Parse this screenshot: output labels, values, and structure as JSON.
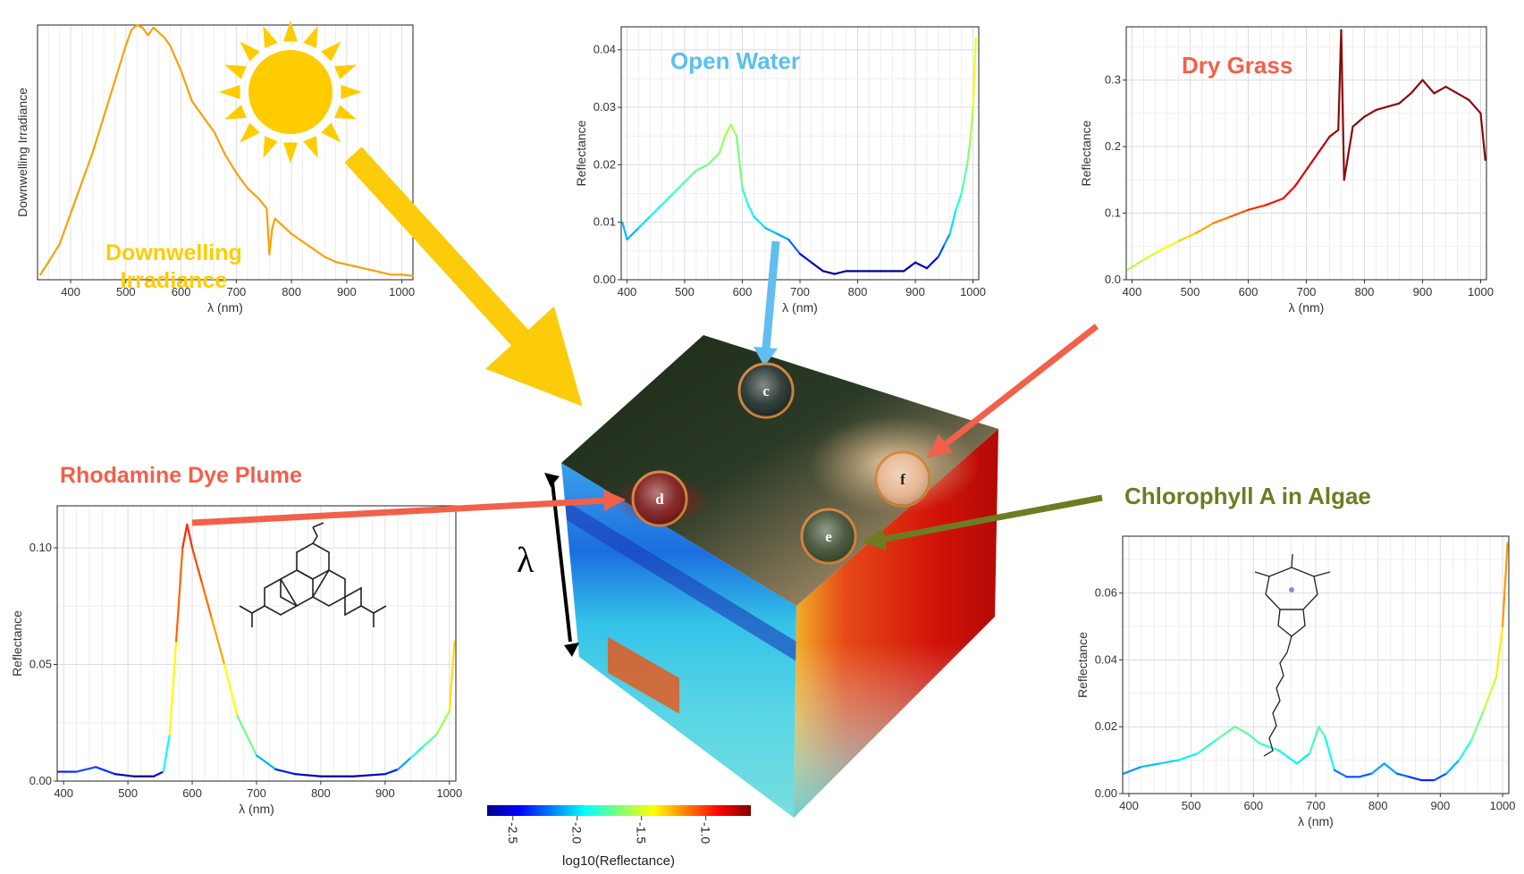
{
  "colors": {
    "irradiance_line": "#f5a20a",
    "sun": "#ffcc00",
    "sun_arrow": "#fccc0a",
    "water_title": "#5bbff0",
    "water_arrow": "#62bdf0",
    "grass_title": "#f2604a",
    "grass_line": "#8b0a0a",
    "rhodamine_title": "#f2604a",
    "rhodamine_arrow": "#f2604a",
    "chlorophyll_title": "#6e7b22",
    "chlorophyll_arrow": "#6e7b22",
    "marker_ring": "#d4863a"
  },
  "panels": {
    "irradiance": {
      "title_line1": "Downwelling",
      "title_line2": "Irradiance",
      "icon": "sun-icon"
    },
    "open_water": {
      "title": "Open Water"
    },
    "dry_grass": {
      "title": "Dry Grass"
    },
    "rhodamine": {
      "title": "Rhodamine Dye Plume",
      "icon": "rhodamine-molecule-icon"
    },
    "chlorophyll": {
      "title": "Chlorophyll A in Algae",
      "icon": "chlorophyll-molecule-icon"
    }
  },
  "cube": {
    "axis_label": "λ",
    "markers": [
      "c",
      "d",
      "e",
      "f"
    ],
    "colorbar": {
      "label": "log10(Reflectance)",
      "ticks": [
        "-2.5",
        "-2.0",
        "-1.5",
        "-1.0"
      ],
      "range": [
        -2.7,
        -0.65
      ]
    }
  },
  "chart_data": [
    {
      "id": "irradiance",
      "type": "line",
      "xlabel": "λ (nm)",
      "ylabel": "Downwelling Irradiance",
      "xlim": [
        340,
        1020
      ],
      "ylim": [
        0,
        1
      ],
      "xticks": [
        400,
        500,
        600,
        700,
        800,
        900,
        1000
      ],
      "yticks": [],
      "x": [
        345,
        360,
        380,
        400,
        420,
        440,
        460,
        480,
        500,
        510,
        520,
        530,
        540,
        550,
        560,
        570,
        580,
        600,
        620,
        640,
        660,
        680,
        700,
        720,
        740,
        755,
        760,
        765,
        770,
        790,
        800,
        820,
        840,
        860,
        880,
        900,
        920,
        940,
        960,
        980,
        1000,
        1020
      ],
      "y": [
        0.02,
        0.07,
        0.14,
        0.26,
        0.38,
        0.5,
        0.64,
        0.78,
        0.92,
        0.98,
        1.0,
        0.99,
        0.96,
        0.99,
        0.97,
        0.95,
        0.92,
        0.82,
        0.7,
        0.64,
        0.58,
        0.49,
        0.42,
        0.36,
        0.32,
        0.28,
        0.1,
        0.2,
        0.24,
        0.2,
        0.18,
        0.15,
        0.12,
        0.09,
        0.07,
        0.06,
        0.05,
        0.04,
        0.03,
        0.02,
        0.02,
        0.015
      ]
    },
    {
      "id": "open_water",
      "type": "line",
      "xlabel": "λ (nm)",
      "ylabel": "Reflectance",
      "xlim": [
        390,
        1010
      ],
      "ylim": [
        0,
        0.044
      ],
      "xticks": [
        400,
        500,
        600,
        700,
        800,
        900,
        1000
      ],
      "yticks": [
        0.0,
        0.01,
        0.02,
        0.03,
        0.04
      ],
      "ytick_labels": [
        "0.00",
        "0.01",
        "0.02",
        "0.03",
        "0.04"
      ],
      "x": [
        392,
        400,
        420,
        440,
        460,
        480,
        500,
        520,
        540,
        560,
        570,
        580,
        590,
        600,
        610,
        620,
        640,
        660,
        680,
        700,
        720,
        740,
        760,
        780,
        800,
        820,
        840,
        860,
        880,
        900,
        920,
        940,
        950,
        960,
        970,
        980,
        990,
        995,
        1000,
        1005
      ],
      "y": [
        0.01,
        0.007,
        0.009,
        0.011,
        0.013,
        0.015,
        0.017,
        0.019,
        0.02,
        0.022,
        0.025,
        0.027,
        0.025,
        0.016,
        0.013,
        0.011,
        0.009,
        0.008,
        0.007,
        0.0045,
        0.003,
        0.0015,
        0.001,
        0.0015,
        0.0015,
        0.0015,
        0.0015,
        0.0015,
        0.0015,
        0.003,
        0.002,
        0.004,
        0.006,
        0.008,
        0.012,
        0.015,
        0.02,
        0.024,
        0.03,
        0.042
      ]
    },
    {
      "id": "dry_grass",
      "type": "line",
      "xlabel": "λ (nm)",
      "ylabel": "Reflectance",
      "xlim": [
        390,
        1010
      ],
      "ylim": [
        0,
        0.38
      ],
      "xticks": [
        400,
        500,
        600,
        700,
        800,
        900,
        1000
      ],
      "yticks": [
        0.0,
        0.1,
        0.2,
        0.3
      ],
      "ytick_labels": [
        "0.0",
        "0.1",
        "0.2",
        "0.3"
      ],
      "x": [
        392,
        420,
        450,
        480,
        510,
        540,
        570,
        600,
        630,
        660,
        680,
        700,
        720,
        740,
        755,
        760,
        765,
        780,
        800,
        820,
        840,
        860,
        880,
        900,
        920,
        940,
        960,
        980,
        1000,
        1008
      ],
      "y": [
        0.015,
        0.03,
        0.045,
        0.058,
        0.07,
        0.085,
        0.095,
        0.105,
        0.112,
        0.122,
        0.14,
        0.165,
        0.19,
        0.215,
        0.225,
        0.375,
        0.15,
        0.23,
        0.245,
        0.255,
        0.26,
        0.265,
        0.28,
        0.3,
        0.28,
        0.29,
        0.28,
        0.27,
        0.25,
        0.18
      ]
    },
    {
      "id": "rhodamine",
      "type": "line",
      "xlabel": "λ (nm)",
      "ylabel": "Reflectance",
      "xlim": [
        390,
        1010
      ],
      "ylim": [
        0,
        0.118
      ],
      "xticks": [
        400,
        500,
        600,
        700,
        800,
        900,
        1000
      ],
      "yticks": [
        0.0,
        0.05,
        0.1
      ],
      "ytick_labels": [
        "0.00",
        "0.05",
        "0.10"
      ],
      "x": [
        392,
        420,
        450,
        480,
        510,
        540,
        555,
        565,
        575,
        585,
        592,
        600,
        615,
        630,
        650,
        670,
        700,
        730,
        760,
        800,
        850,
        900,
        920,
        940,
        960,
        980,
        1000,
        1008
      ],
      "y": [
        0.004,
        0.004,
        0.006,
        0.003,
        0.002,
        0.002,
        0.004,
        0.02,
        0.06,
        0.1,
        0.11,
        0.1,
        0.085,
        0.07,
        0.05,
        0.028,
        0.011,
        0.005,
        0.003,
        0.002,
        0.002,
        0.003,
        0.005,
        0.01,
        0.015,
        0.02,
        0.03,
        0.06
      ]
    },
    {
      "id": "chlorophyll",
      "type": "line",
      "xlabel": "λ (nm)",
      "ylabel": "Reflectance",
      "xlim": [
        390,
        1010
      ],
      "ylim": [
        0,
        0.077
      ],
      "xticks": [
        400,
        500,
        600,
        700,
        800,
        900,
        1000
      ],
      "yticks": [
        0.0,
        0.02,
        0.04,
        0.06
      ],
      "ytick_labels": [
        "0.00",
        "0.02",
        "0.04",
        "0.06"
      ],
      "x": [
        392,
        420,
        450,
        480,
        510,
        540,
        570,
        590,
        610,
        640,
        670,
        690,
        705,
        715,
        730,
        750,
        770,
        790,
        810,
        830,
        850,
        870,
        890,
        910,
        930,
        950,
        970,
        990,
        1000,
        1008
      ],
      "y": [
        0.006,
        0.008,
        0.009,
        0.01,
        0.012,
        0.016,
        0.02,
        0.018,
        0.015,
        0.013,
        0.009,
        0.012,
        0.02,
        0.017,
        0.007,
        0.005,
        0.005,
        0.006,
        0.009,
        0.006,
        0.005,
        0.004,
        0.004,
        0.006,
        0.01,
        0.016,
        0.025,
        0.035,
        0.05,
        0.075
      ]
    }
  ]
}
